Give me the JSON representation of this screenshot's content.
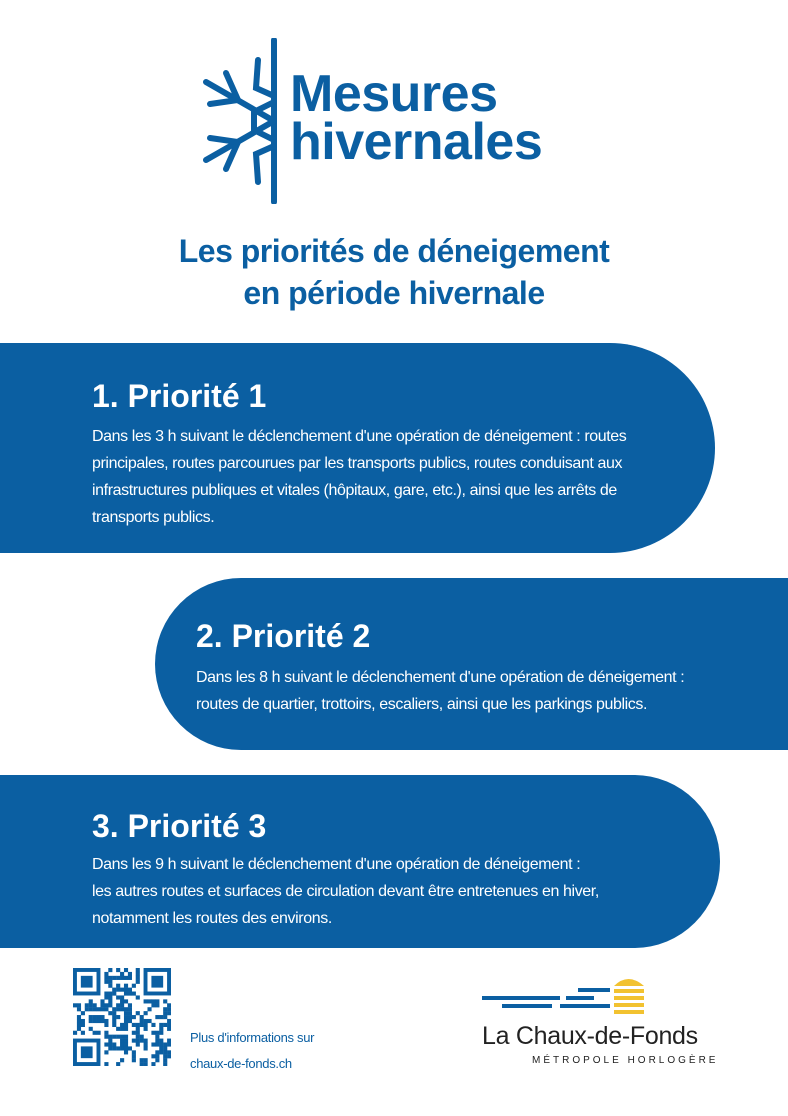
{
  "header": {
    "title": [
      "Mesures",
      "hivernales"
    ],
    "subtitle": [
      "Les priorités de déneigement",
      "en période hivernale"
    ]
  },
  "priorities": [
    {
      "heading": "1. Priorité 1",
      "text": [
        "Dans les 3 h suivant le déclenchement d'une opération de déneigement : routes",
        "principales, routes parcourues par les transports publics, routes conduisant aux",
        "infrastructures publiques et vitales (hôpitaux, gare, etc.), ainsi que les arrêts de",
        "transports publics."
      ]
    },
    {
      "heading": "2. Priorité 2",
      "text": [
        "Dans les 8 h suivant le déclenchement d'une opération de déneigement :",
        "routes de quartier, trottoirs, escaliers, ainsi que les parkings publics."
      ]
    },
    {
      "heading": "3. Priorité 3",
      "text": [
        "Dans les 9 h suivant le déclenchement d'une opération de déneigement :",
        "les autres routes et surfaces de circulation devant être entretenues en hiver,",
        "notamment les routes des environs."
      ]
    }
  ],
  "footer": {
    "info": [
      "Plus d'informations sur",
      "chaux-de-fonds.ch"
    ],
    "logo": {
      "name": "La Chaux-de-Fonds",
      "tagline": "MÉTROPOLE HORLOGÈRE"
    }
  }
}
